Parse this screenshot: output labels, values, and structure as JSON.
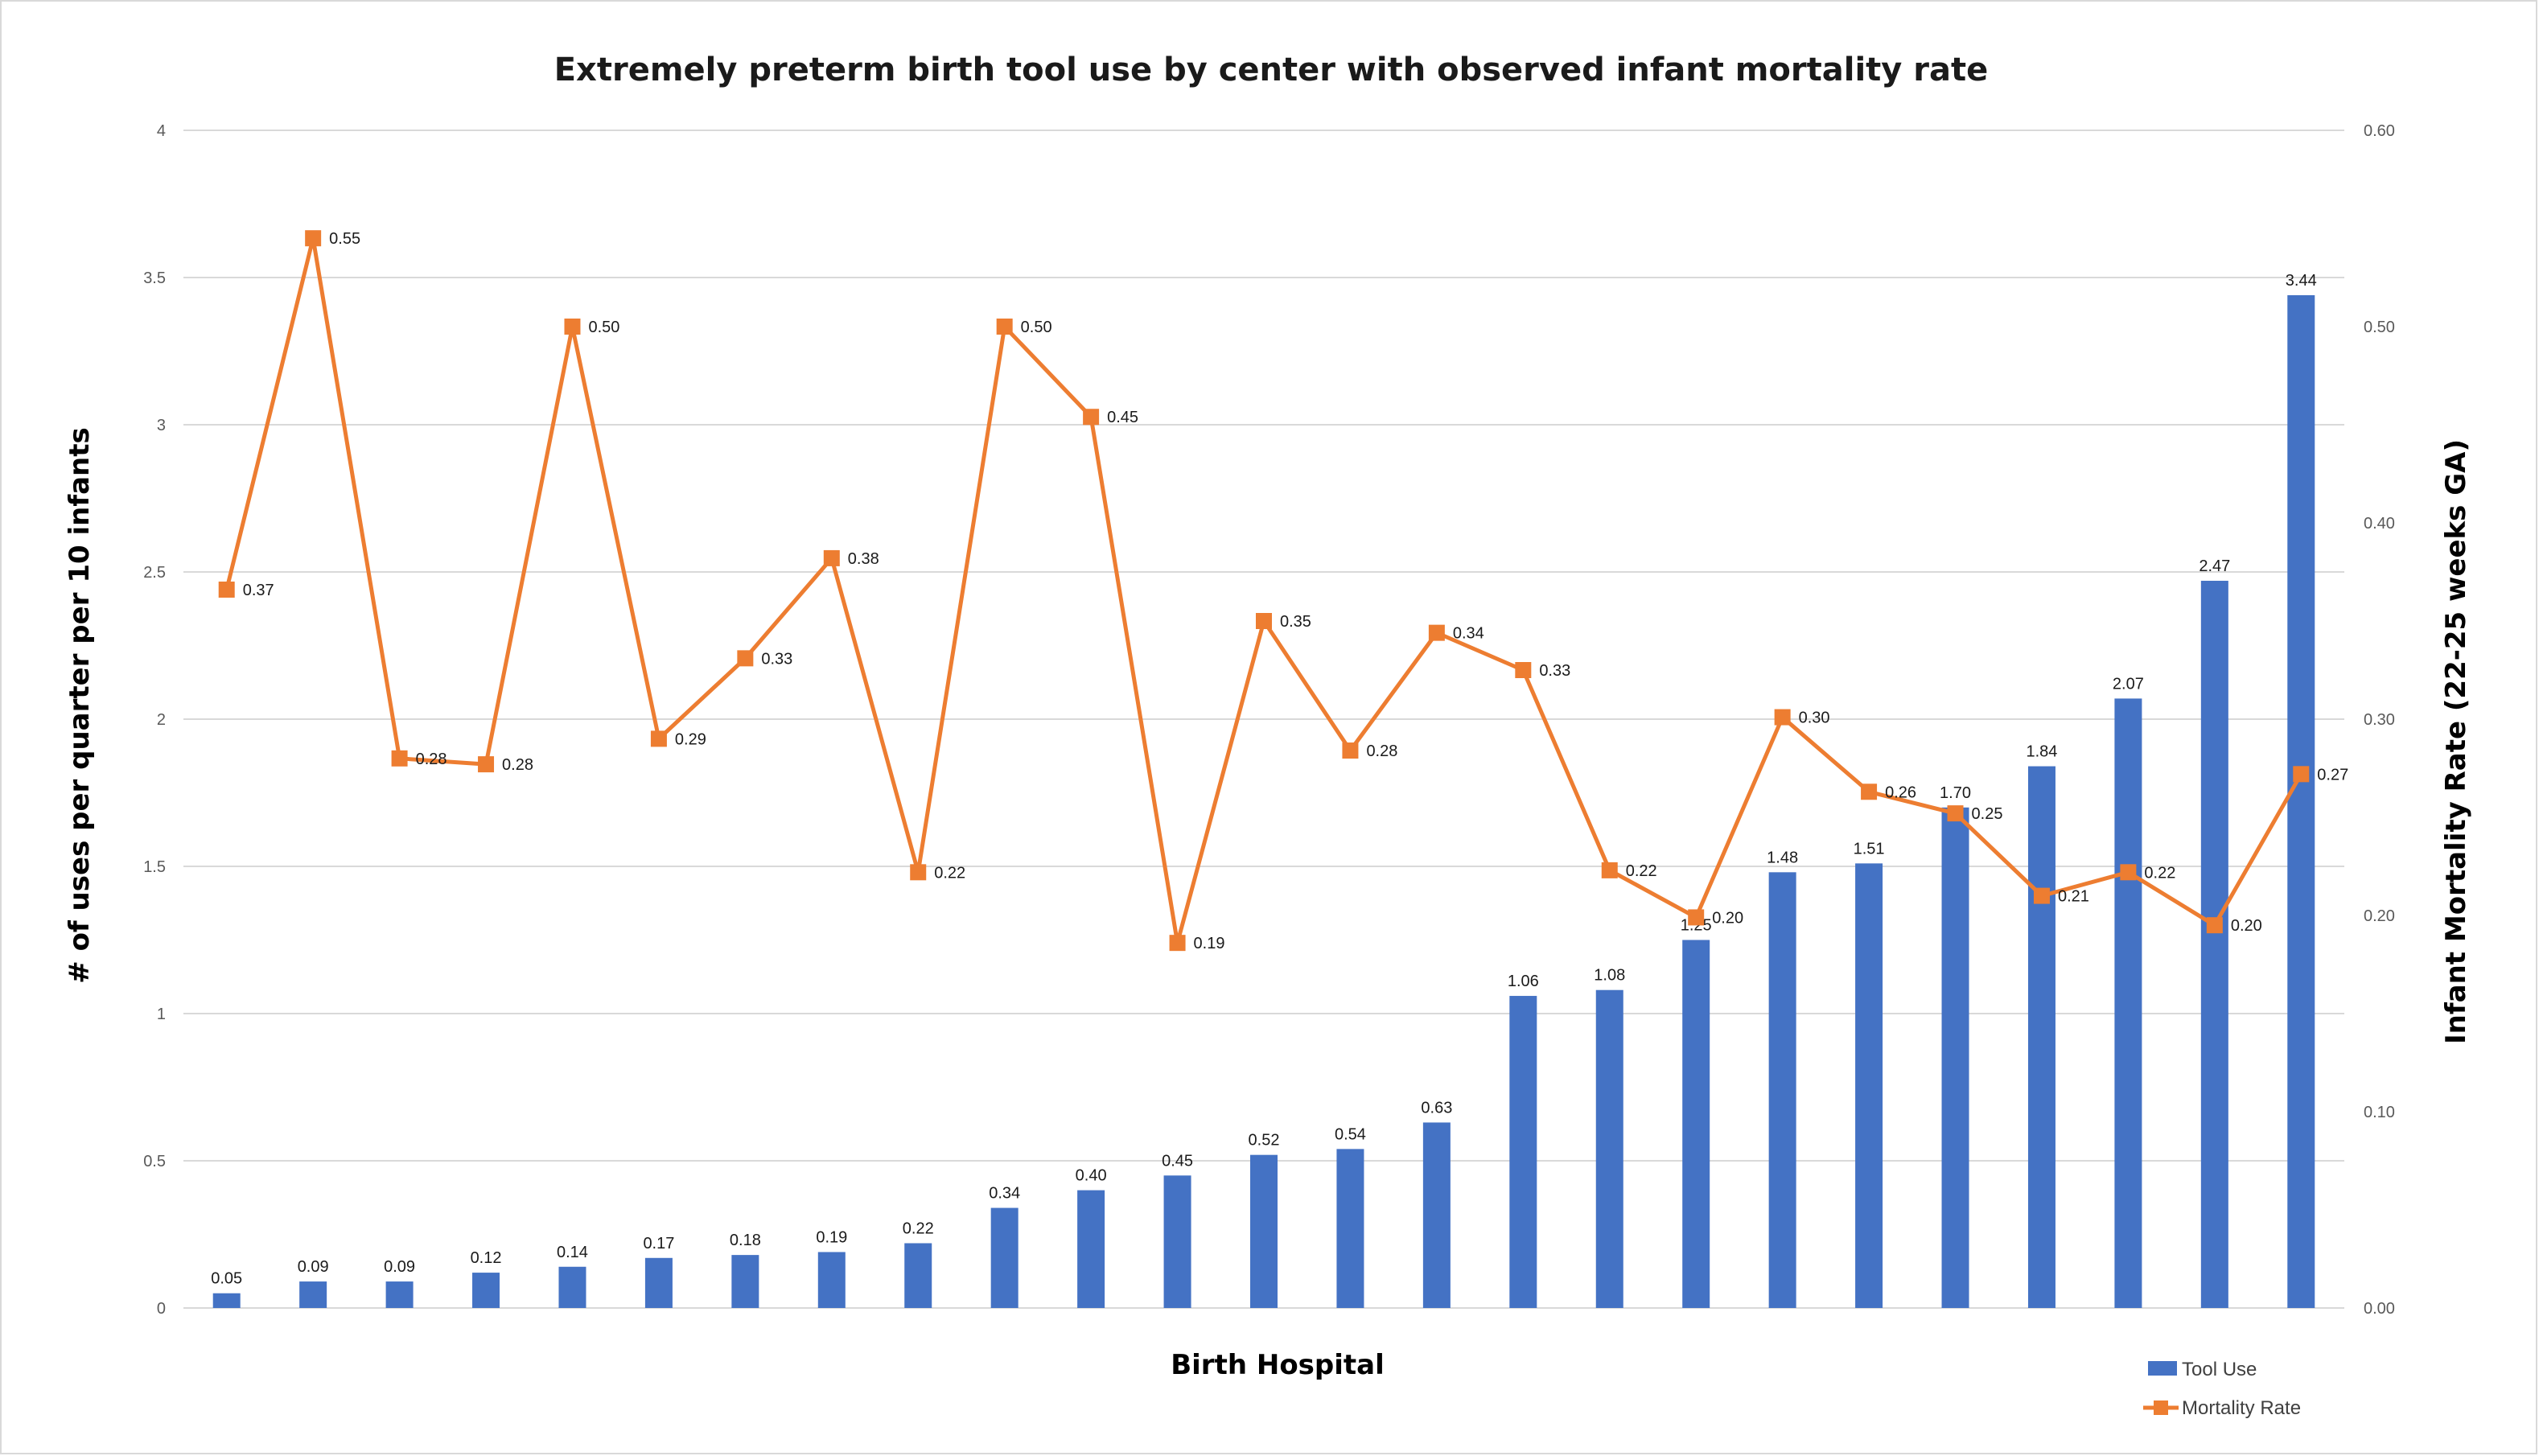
{
  "chart_data": {
    "type": "bar",
    "title": "Extremely preterm birth tool use by center with observed infant mortality rate",
    "xlabel": "Birth Hospital",
    "ylabel": "# of uses per quarter per 10 infants",
    "y2label": "Infant Mortality Rate (22-25 weeks GA)",
    "ylim": [
      0,
      4
    ],
    "y2lim": [
      0,
      0.6
    ],
    "yticks": [
      "0",
      "0.5",
      "1",
      "1.5",
      "2",
      "2.5",
      "3",
      "3.5",
      "4"
    ],
    "y2ticks": [
      "0.00",
      "0.10",
      "0.20",
      "0.30",
      "0.40",
      "0.50",
      "0.60"
    ],
    "grid": true,
    "legend_position": "bottom-right",
    "series": [
      {
        "name": "Tool Use",
        "type": "bar",
        "axis": "left",
        "color": "#4472c4",
        "values": [
          0.05,
          0.09,
          0.09,
          0.12,
          0.14,
          0.17,
          0.18,
          0.19,
          0.22,
          0.34,
          0.4,
          0.45,
          0.52,
          0.54,
          0.63,
          1.06,
          1.08,
          1.25,
          1.48,
          1.51,
          1.7,
          1.84,
          2.07,
          2.47,
          3.44
        ],
        "labels": [
          "0.05",
          "0.09",
          "0.09",
          "0.12",
          "0.14",
          "0.17",
          "0.18",
          "0.19",
          "0.22",
          "0.34",
          "0.40",
          "0.45",
          "0.52",
          "0.54",
          "0.63",
          "1.06",
          "1.08",
          "1.25",
          "1.48",
          "1.51",
          "1.70",
          "1.84",
          "2.07",
          "2.47",
          "3.44"
        ]
      },
      {
        "name": "Mortality Rate",
        "type": "line",
        "axis": "right",
        "color": "#ed7d31",
        "values": [
          0.366,
          0.545,
          0.28,
          0.277,
          0.5,
          0.29,
          0.331,
          0.382,
          0.222,
          0.5,
          0.454,
          0.186,
          0.35,
          0.284,
          0.344,
          0.325,
          0.223,
          0.199,
          0.301,
          0.263,
          0.252,
          0.21,
          0.222,
          0.195,
          0.272
        ],
        "labels": [
          "0.37",
          "0.55",
          "0.28",
          "0.28",
          "0.50",
          "0.29",
          "0.33",
          "0.38",
          "0.22",
          "0.50",
          "0.45",
          "0.19",
          "0.35",
          "0.28",
          "0.34",
          "0.33",
          "0.22",
          "0.20",
          "0.30",
          "0.26",
          "0.25",
          "0.21",
          "0.22",
          "0.20",
          "0.27"
        ]
      }
    ]
  }
}
